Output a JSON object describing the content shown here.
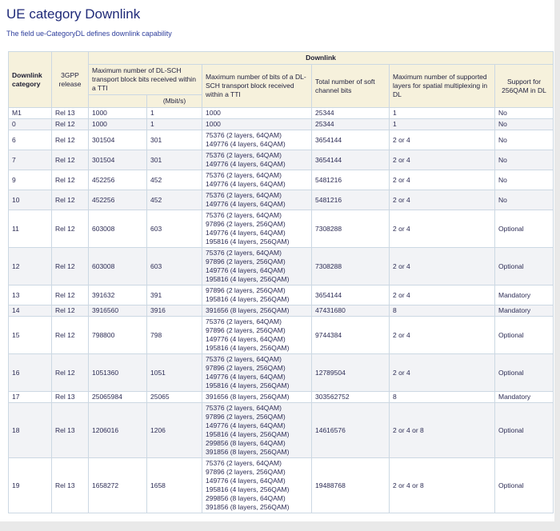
{
  "page": {
    "title": "UE category Downlink",
    "subtitle": "The field ue-CategoryDL defines downlink capability"
  },
  "colors": {
    "title_text": "#1f2a78",
    "subtitle_text": "#2e3e9c",
    "header_bg": "#f6f1dc",
    "stripe_bg": "#f2f3f6",
    "cell_border": "#ccd8e3",
    "outer_border": "#a9b6c3",
    "body_text": "#2d2d55",
    "page_edge_bg": "#e9e9e9"
  },
  "table": {
    "group_header": "Downlink",
    "headers": {
      "category": "Downlink category",
      "release": "3GPP release",
      "max_tb_bits": "Maximum number of DL-SCH transport block bits received within a TTI",
      "max_tb_bits_unit": "(Mbit/s)",
      "max_bits_per_tb": "Maximum number of bits of a DL-SCH transport block received within a TTI",
      "soft_channel_bits": "Total number of soft channel bits",
      "max_layers": "Maximum number of supported layers for spatial multiplexing in DL",
      "qam256": "Support for 256QAM in DL"
    },
    "rows": [
      {
        "category": "M1",
        "release": "Rel 13",
        "max_tb_bits": "1000",
        "mbit_s": "1",
        "tb_detail": [
          "1000"
        ],
        "soft_bits": "25344",
        "layers": "1",
        "qam256": "No"
      },
      {
        "category": "0",
        "release": "Rel 12",
        "max_tb_bits": "1000",
        "mbit_s": "1",
        "tb_detail": [
          "1000"
        ],
        "soft_bits": "25344",
        "layers": "1",
        "qam256": "No"
      },
      {
        "category": "6",
        "release": "Rel 12",
        "max_tb_bits": "301504",
        "mbit_s": "301",
        "tb_detail": [
          "75376 (2 layers, 64QAM)",
          "149776 (4 layers, 64QAM)"
        ],
        "soft_bits": "3654144",
        "layers": "2 or 4",
        "qam256": "No"
      },
      {
        "category": "7",
        "release": "Rel 12",
        "max_tb_bits": "301504",
        "mbit_s": "301",
        "tb_detail": [
          "75376 (2 layers, 64QAM)",
          "149776 (4 layers, 64QAM)"
        ],
        "soft_bits": "3654144",
        "layers": "2 or 4",
        "qam256": "No"
      },
      {
        "category": "9",
        "release": "Rel 12",
        "max_tb_bits": "452256",
        "mbit_s": "452",
        "tb_detail": [
          "75376 (2 layers, 64QAM)",
          "149776 (4 layers, 64QAM)"
        ],
        "soft_bits": "5481216",
        "layers": "2 or 4",
        "qam256": "No"
      },
      {
        "category": "10",
        "release": "Rel 12",
        "max_tb_bits": "452256",
        "mbit_s": "452",
        "tb_detail": [
          "75376 (2 layers, 64QAM)",
          "149776 (4 layers, 64QAM)"
        ],
        "soft_bits": "5481216",
        "layers": "2 or 4",
        "qam256": "No"
      },
      {
        "category": "11",
        "release": "Rel 12",
        "max_tb_bits": "603008",
        "mbit_s": "603",
        "tb_detail": [
          "75376 (2 layers, 64QAM)",
          "97896 (2 layers, 256QAM)",
          "149776 (4 layers, 64QAM)",
          "195816 (4 layers, 256QAM)"
        ],
        "soft_bits": "7308288",
        "layers": "2 or 4",
        "qam256": "Optional"
      },
      {
        "category": "12",
        "release": "Rel 12",
        "max_tb_bits": "603008",
        "mbit_s": "603",
        "tb_detail": [
          "75376 (2 layers, 64QAM)",
          "97896 (2 layers, 256QAM)",
          "149776 (4 layers, 64QAM)",
          "195816 (4 layers, 256QAM)"
        ],
        "soft_bits": "7308288",
        "layers": "2 or 4",
        "qam256": "Optional"
      },
      {
        "category": "13",
        "release": "Rel 12",
        "max_tb_bits": "391632",
        "mbit_s": "391",
        "tb_detail": [
          "97896 (2 layers, 256QAM)",
          "195816 (4 layers, 256QAM)"
        ],
        "soft_bits": "3654144",
        "layers": "2 or 4",
        "qam256": "Mandatory"
      },
      {
        "category": "14",
        "release": "Rel 12",
        "max_tb_bits": "3916560",
        "mbit_s": "3916",
        "tb_detail": [
          "391656 (8 layers, 256QAM)"
        ],
        "soft_bits": "47431680",
        "layers": "8",
        "qam256": "Mandatory"
      },
      {
        "category": "15",
        "release": "Rel 12",
        "max_tb_bits": "798800",
        "mbit_s": "798",
        "tb_detail": [
          "75376 (2 layers, 64QAM)",
          "97896 (2 layers, 256QAM)",
          "149776 (4 layers, 64QAM)",
          "195816 (4 layers, 256QAM)"
        ],
        "soft_bits": "9744384",
        "layers": "2 or 4",
        "qam256": "Optional"
      },
      {
        "category": "16",
        "release": "Rel 12",
        "max_tb_bits": "1051360",
        "mbit_s": "1051",
        "tb_detail": [
          "75376 (2 layers, 64QAM)",
          "97896 (2 layers, 256QAM)",
          "149776 (4 layers, 64QAM)",
          "195816 (4 layers, 256QAM)"
        ],
        "soft_bits": "12789504",
        "layers": "2 or 4",
        "qam256": "Optional"
      },
      {
        "category": "17",
        "release": "Rel 13",
        "max_tb_bits": "25065984",
        "mbit_s": "25065",
        "tb_detail": [
          "391656 (8 layers, 256QAM)"
        ],
        "soft_bits": "303562752",
        "layers": "8",
        "qam256": "Mandatory"
      },
      {
        "category": "18",
        "release": "Rel 13",
        "max_tb_bits": "1206016",
        "mbit_s": "1206",
        "tb_detail": [
          "75376 (2 layers, 64QAM)",
          "97896 (2 layers, 256QAM)",
          "149776 (4 layers, 64QAM)",
          "195816 (4 layers, 256QAM)",
          "299856 (8 layers, 64QAM)",
          "391856 (8 layers, 256QAM)"
        ],
        "soft_bits": "14616576",
        "layers": "2 or 4 or 8",
        "qam256": "Optional"
      },
      {
        "category": "19",
        "release": "Rel 13",
        "max_tb_bits": "1658272",
        "mbit_s": "1658",
        "tb_detail": [
          "75376 (2 layers, 64QAM)",
          "97896 (2 layers, 256QAM)",
          "149776 (4 layers, 64QAM)",
          "195816 (4 layers, 256QAM)",
          "299856 (8 layers, 64QAM)",
          "391856 (8 layers, 256QAM)"
        ],
        "soft_bits": "19488768",
        "layers": "2 or 4 or 8",
        "qam256": "Optional"
      }
    ]
  }
}
